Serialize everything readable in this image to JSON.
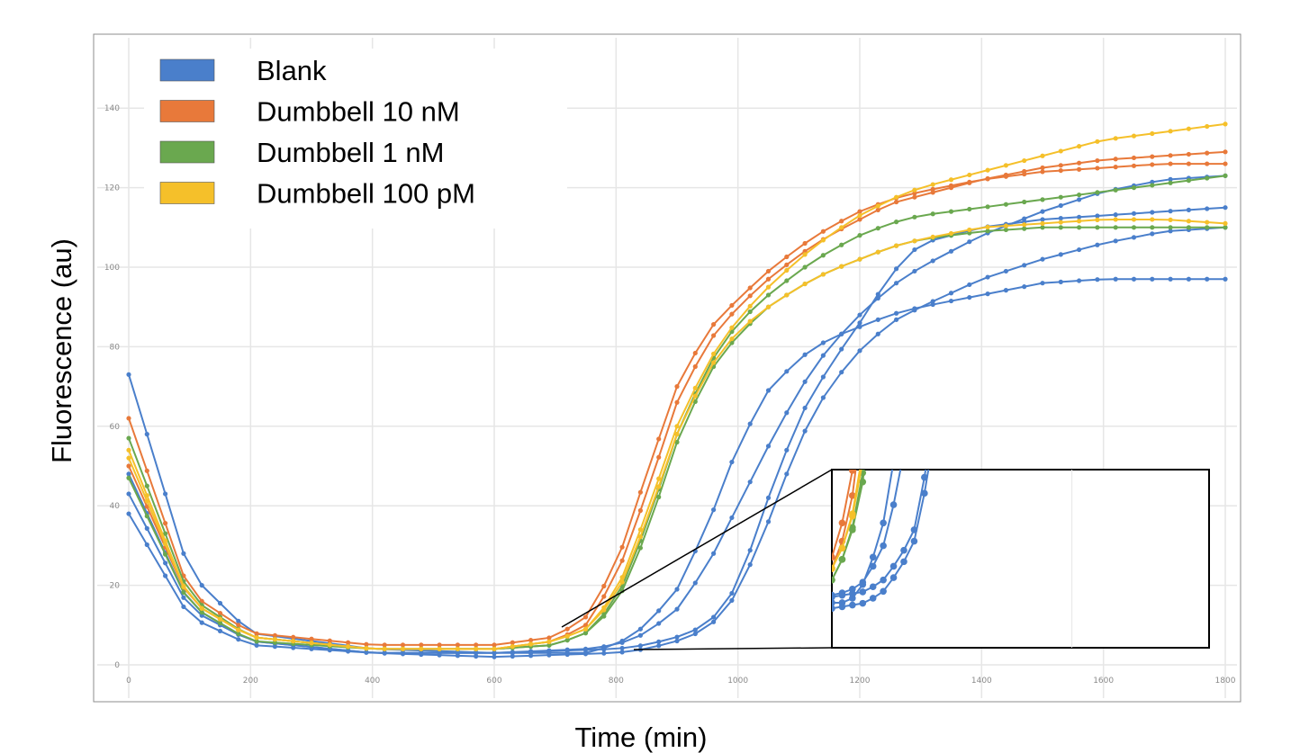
{
  "chart_data": {
    "type": "line",
    "title": "",
    "xlabel": "Time (min)",
    "ylabel": "Fluorescence (au)",
    "xlim": [
      0,
      1800
    ],
    "ylim": [
      0,
      150
    ],
    "xticks": [
      0,
      200,
      400,
      600,
      800,
      1000,
      1200,
      1400,
      1600,
      1800
    ],
    "yticks": [
      0,
      20,
      40,
      60,
      80,
      100,
      120,
      140
    ],
    "grid": true,
    "legend_position": "top-left",
    "legend": [
      {
        "name": "Blank",
        "color": "#4a7fcb"
      },
      {
        "name": "Dumbbell 10 nM",
        "color": "#e8793a"
      },
      {
        "name": "Dumbbell 1 nM",
        "color": "#6aa84f"
      },
      {
        "name": "Dumbbell 100 pM",
        "color": "#f5c02a"
      }
    ],
    "inset": {
      "xlim": [
        700,
        1800
      ],
      "ylim": [
        0,
        50
      ],
      "zoom_of": "main plot"
    },
    "series": [
      {
        "name": "Blank",
        "color": "#4a7fcb",
        "x": [
          0,
          100,
          200,
          400,
          600,
          750,
          800,
          850,
          900,
          950,
          1000,
          1050,
          1100,
          1150,
          1200,
          1250,
          1300,
          1400,
          1500,
          1600,
          1700,
          1800
        ],
        "y": [
          73,
          23,
          8,
          4,
          3,
          4,
          5,
          8,
          14,
          25,
          40,
          55,
          69,
          80,
          88,
          95,
          100,
          108,
          114,
          119,
          122,
          123
        ]
      },
      {
        "name": "Blank",
        "color": "#4a7fcb",
        "x": [
          0,
          100,
          200,
          400,
          600,
          750,
          800,
          850,
          900,
          950,
          1000,
          1050,
          1100,
          1150,
          1200,
          1250,
          1300,
          1400,
          1500,
          1600,
          1700,
          1800
        ],
        "y": [
          48,
          15,
          6,
          3,
          3,
          3,
          5,
          10,
          19,
          35,
          55,
          69,
          77,
          82,
          85,
          88,
          90,
          93,
          96,
          97,
          97,
          97
        ]
      },
      {
        "name": "Blank",
        "color": "#4a7fcb",
        "x": [
          0,
          100,
          200,
          400,
          600,
          800,
          850,
          900,
          950,
          1000,
          1050,
          1100,
          1150,
          1200,
          1250,
          1300,
          1400,
          1500,
          1600,
          1700,
          1800
        ],
        "y": [
          43,
          14,
          6,
          3,
          3,
          4,
          5,
          7,
          10,
          20,
          42,
          62,
          75,
          86,
          98,
          106,
          110,
          112,
          113,
          114,
          115
        ]
      },
      {
        "name": "Blank",
        "color": "#4a7fcb",
        "x": [
          0,
          100,
          200,
          400,
          600,
          800,
          850,
          900,
          950,
          1000,
          1050,
          1100,
          1150,
          1200,
          1250,
          1300,
          1400,
          1500,
          1600,
          1700,
          1800
        ],
        "y": [
          38,
          12,
          5,
          3,
          2,
          3,
          4,
          6,
          9,
          18,
          36,
          56,
          70,
          79,
          86,
          90,
          97,
          102,
          106,
          109,
          110
        ]
      },
      {
        "name": "Dumbbell 10 nM",
        "color": "#e8793a",
        "x": [
          0,
          100,
          200,
          400,
          600,
          700,
          750,
          800,
          850,
          900,
          950,
          1000,
          1050,
          1100,
          1150,
          1200,
          1250,
          1300,
          1400,
          1500,
          1600,
          1700,
          1800
        ],
        "y": [
          62,
          18,
          8,
          5,
          5,
          7,
          12,
          25,
          48,
          70,
          84,
          92,
          99,
          105,
          110,
          114,
          117,
          119,
          122,
          124,
          125,
          126,
          126
        ]
      },
      {
        "name": "Dumbbell 10 nM",
        "color": "#e8793a",
        "x": [
          0,
          100,
          200,
          400,
          600,
          700,
          750,
          800,
          850,
          900,
          950,
          1000,
          1050,
          1100,
          1150,
          1200,
          1250,
          1300,
          1400,
          1500,
          1600,
          1700,
          1800
        ],
        "y": [
          50,
          16,
          7,
          4,
          4,
          6,
          10,
          22,
          43,
          66,
          81,
          90,
          97,
          103,
          108,
          112,
          116,
          118,
          122,
          125,
          127,
          128,
          129
        ]
      },
      {
        "name": "Dumbbell 1 nM",
        "color": "#6aa84f",
        "x": [
          0,
          100,
          200,
          400,
          600,
          700,
          750,
          800,
          850,
          900,
          950,
          1000,
          1050,
          1100,
          1150,
          1200,
          1250,
          1300,
          1350,
          1400,
          1500,
          1600,
          1700,
          1800
        ],
        "y": [
          57,
          17,
          7,
          4,
          4,
          5,
          8,
          16,
          35,
          58,
          75,
          86,
          93,
          99,
          104,
          108,
          111,
          113,
          114,
          115,
          117,
          119,
          121,
          123
        ]
      },
      {
        "name": "Dumbbell 1 nM",
        "color": "#6aa84f",
        "x": [
          0,
          100,
          200,
          400,
          600,
          700,
          750,
          800,
          850,
          900,
          950,
          1000,
          1050,
          1100,
          1150,
          1200,
          1250,
          1300,
          1400,
          1500,
          1600,
          1700,
          1800
        ],
        "y": [
          47,
          15,
          6,
          4,
          4,
          5,
          8,
          15,
          33,
          56,
          73,
          83,
          90,
          95,
          99,
          102,
          105,
          107,
          109,
          110,
          110,
          110,
          110
        ]
      },
      {
        "name": "Dumbbell 100 pM",
        "color": "#f5c02a",
        "x": [
          0,
          100,
          200,
          400,
          600,
          700,
          750,
          800,
          850,
          900,
          950,
          1000,
          1050,
          1100,
          1150,
          1200,
          1250,
          1300,
          1400,
          1500,
          1600,
          1700,
          1800
        ],
        "y": [
          54,
          16,
          7,
          4,
          4,
          6,
          9,
          18,
          38,
          60,
          76,
          87,
          95,
          102,
          108,
          113,
          117,
          120,
          124,
          128,
          132,
          134,
          136
        ]
      },
      {
        "name": "Dumbbell 100 pM",
        "color": "#f5c02a",
        "x": [
          0,
          100,
          200,
          400,
          600,
          700,
          750,
          800,
          850,
          900,
          950,
          1000,
          1050,
          1100,
          1150,
          1200,
          1250,
          1300,
          1400,
          1500,
          1600,
          1700,
          1800
        ],
        "y": [
          52,
          16,
          7,
          4,
          4,
          6,
          9,
          17,
          36,
          58,
          74,
          84,
          90,
          95,
          99,
          102,
          105,
          107,
          110,
          111,
          112,
          112,
          111
        ]
      }
    ]
  }
}
